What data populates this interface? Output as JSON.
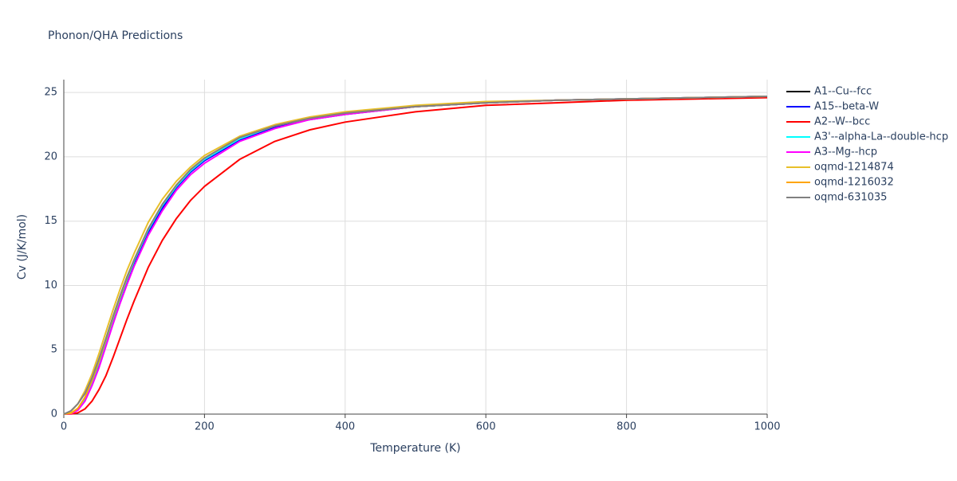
{
  "chart_data": {
    "type": "line",
    "title": "Phonon/QHA Predictions",
    "x_label": "Temperature (K)",
    "y_label": "Cv (J/K/mol)",
    "x": [
      0,
      10,
      20,
      30,
      40,
      50,
      60,
      70,
      80,
      90,
      100,
      120,
      140,
      160,
      180,
      200,
      250,
      300,
      350,
      400,
      500,
      600,
      700,
      800,
      900,
      1000
    ],
    "xlim": [
      0,
      1000
    ],
    "xticks": [
      0,
      200,
      400,
      600,
      800,
      1000
    ],
    "ylim": [
      0,
      26
    ],
    "yticks": [
      0,
      5,
      10,
      15,
      20,
      25
    ],
    "grid": true,
    "legend": "right",
    "series": [
      {
        "name": "A1--Cu--fcc",
        "color": "#000000",
        "values": [
          0,
          0.05,
          0.4,
          1.2,
          2.5,
          4.0,
          5.7,
          7.4,
          9.0,
          10.5,
          11.9,
          14.3,
          16.2,
          17.7,
          18.9,
          19.8,
          21.4,
          22.4,
          23.0,
          23.4,
          23.9,
          24.2,
          24.4,
          24.5,
          24.6,
          24.7
        ]
      },
      {
        "name": "A15--beta-W",
        "color": "#0000ff",
        "values": [
          0,
          0.04,
          0.35,
          1.1,
          2.3,
          3.8,
          5.5,
          7.2,
          8.8,
          10.3,
          11.7,
          14.1,
          16.0,
          17.6,
          18.8,
          19.7,
          21.3,
          22.3,
          22.9,
          23.3,
          23.9,
          24.2,
          24.4,
          24.5,
          24.6,
          24.7
        ]
      },
      {
        "name": "A2--W--bcc",
        "color": "#ff0000",
        "values": [
          0,
          0.01,
          0.1,
          0.4,
          1.0,
          1.9,
          3.0,
          4.4,
          5.9,
          7.4,
          8.8,
          11.4,
          13.5,
          15.2,
          16.6,
          17.7,
          19.8,
          21.2,
          22.1,
          22.7,
          23.5,
          24.0,
          24.2,
          24.4,
          24.5,
          24.6
        ]
      },
      {
        "name": "A3'--alpha-La--double-hcp",
        "color": "#00ffff",
        "values": [
          0,
          0.05,
          0.4,
          1.2,
          2.5,
          4.0,
          5.7,
          7.4,
          9.0,
          10.5,
          11.9,
          14.3,
          16.2,
          17.7,
          18.9,
          19.8,
          21.4,
          22.4,
          23.0,
          23.4,
          23.9,
          24.2,
          24.4,
          24.5,
          24.6,
          24.7
        ]
      },
      {
        "name": "A3--Mg--hcp",
        "color": "#ff00ff",
        "values": [
          0,
          0.03,
          0.3,
          1.0,
          2.2,
          3.6,
          5.3,
          7.0,
          8.6,
          10.1,
          11.5,
          13.9,
          15.8,
          17.4,
          18.6,
          19.5,
          21.2,
          22.2,
          22.9,
          23.3,
          23.9,
          24.2,
          24.4,
          24.5,
          24.6,
          24.7
        ]
      },
      {
        "name": "oqmd-1214874",
        "color": "#e8c02a",
        "values": [
          0,
          0.2,
          0.8,
          1.8,
          3.1,
          4.7,
          6.4,
          8.1,
          9.7,
          11.2,
          12.5,
          14.9,
          16.7,
          18.1,
          19.2,
          20.1,
          21.6,
          22.5,
          23.1,
          23.5,
          24.0,
          24.3,
          24.4,
          24.5,
          24.6,
          24.7
        ]
      },
      {
        "name": "oqmd-1216032",
        "color": "#ffa500",
        "values": [
          0,
          0.06,
          0.45,
          1.3,
          2.6,
          4.1,
          5.8,
          7.5,
          9.1,
          10.6,
          12.0,
          14.4,
          16.3,
          17.8,
          19.0,
          19.9,
          21.5,
          22.4,
          23.0,
          23.4,
          23.9,
          24.2,
          24.4,
          24.5,
          24.6,
          24.7
        ]
      },
      {
        "name": "oqmd-631035",
        "color": "#808080",
        "values": [
          0,
          0.25,
          0.8,
          1.6,
          2.8,
          4.3,
          5.9,
          7.6,
          9.2,
          10.7,
          12.0,
          14.4,
          16.3,
          17.8,
          19.0,
          19.9,
          21.5,
          22.4,
          23.0,
          23.4,
          23.9,
          24.2,
          24.4,
          24.5,
          24.6,
          24.7
        ]
      }
    ]
  }
}
